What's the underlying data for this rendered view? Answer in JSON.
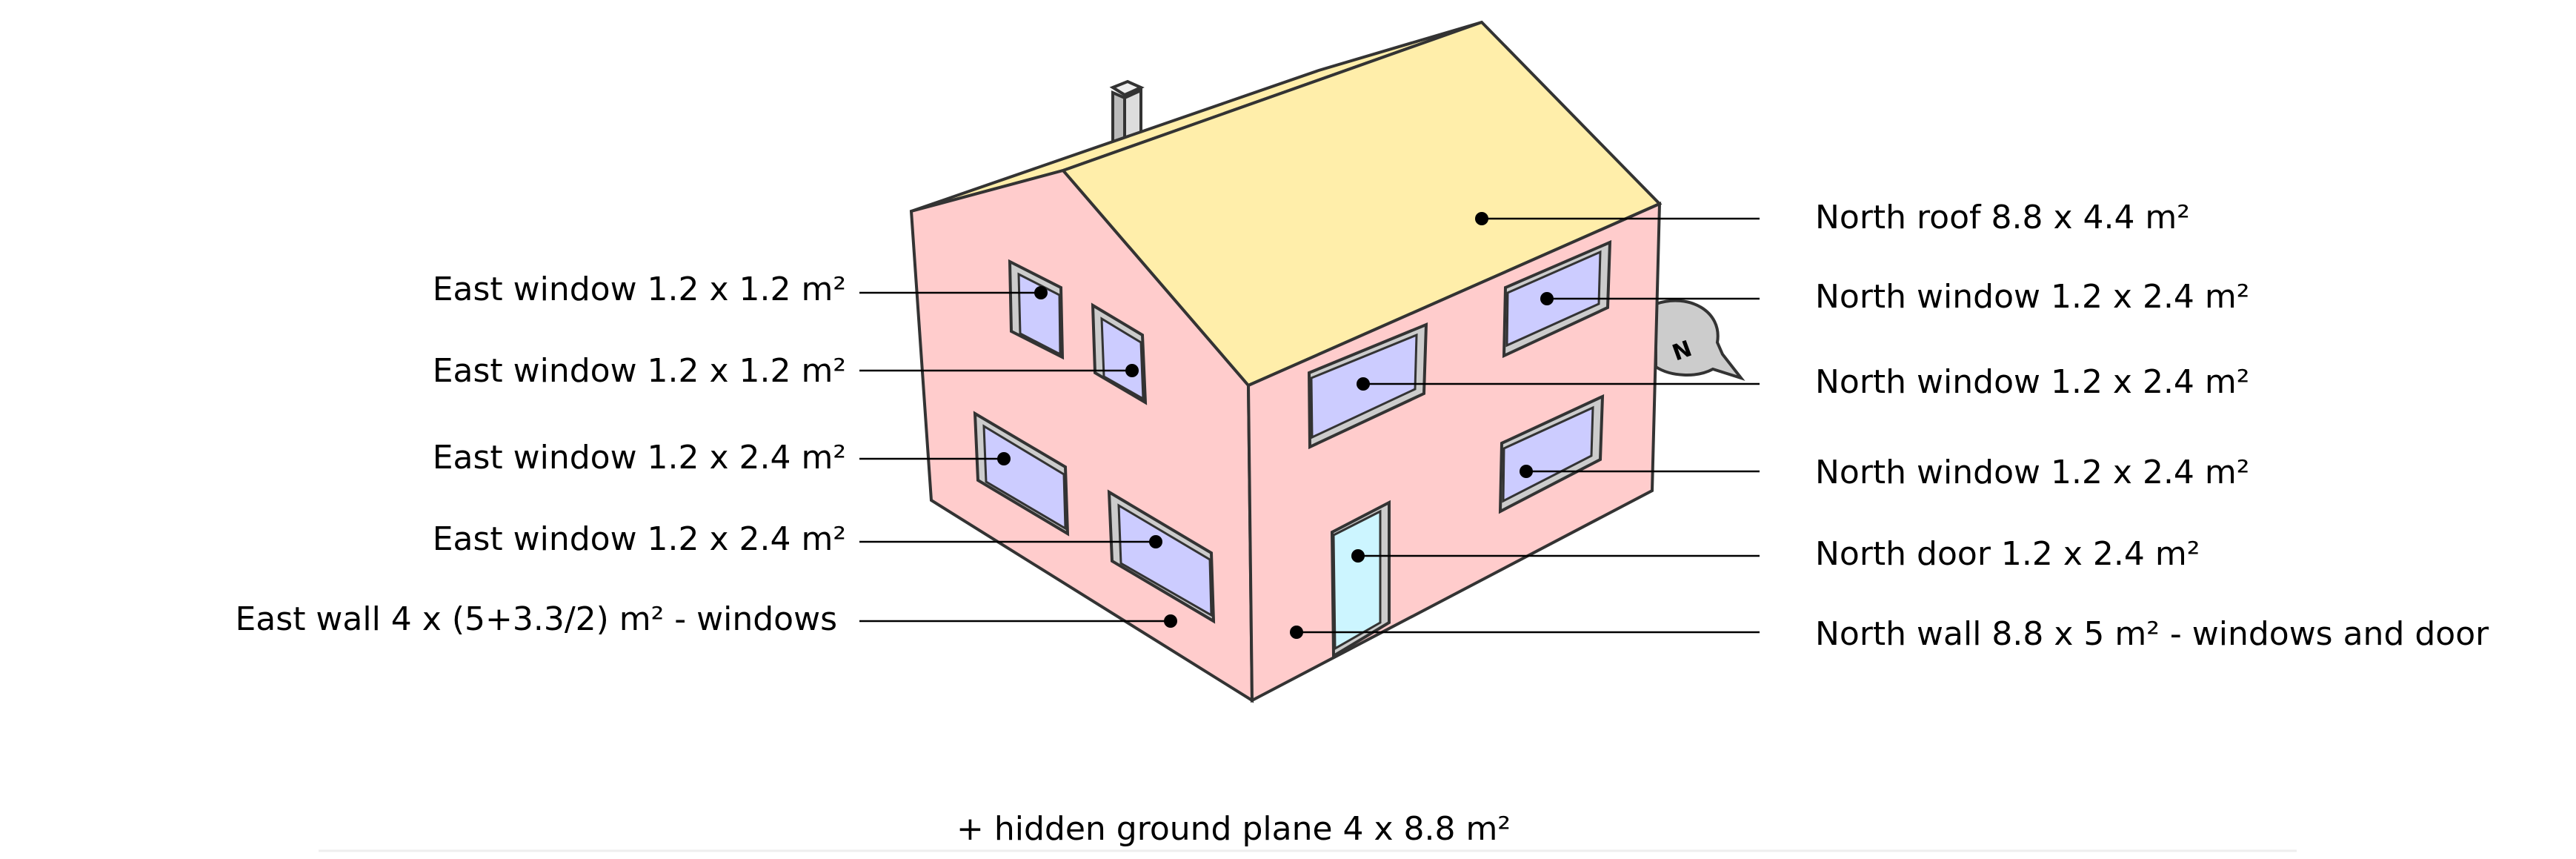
{
  "colors": {
    "wall": "#ffcccc",
    "roof": "#ffeeaa",
    "window": "#ccccff",
    "door": "#ccf5ff",
    "frame": "#cccccc",
    "outline": "#333333"
  },
  "labels": {
    "east_window_1": "East window 1.2 x 1.2 m²",
    "east_window_2": "East window 1.2 x 1.2 m²",
    "east_window_3": "East window 1.2 x 2.4 m²",
    "east_window_4": "East window 1.2 x 2.4 m²",
    "east_wall": "East wall 4 x (5+3.3/2) m² - windows",
    "north_roof": "North roof 8.8 x 4.4 m²",
    "north_window_1": "North window 1.2 x 2.4 m²",
    "north_window_2": "North window 1.2 x 2.4 m²",
    "north_window_3": "North window 1.2 x 2.4 m²",
    "north_door": "North door 1.2 x 2.4 m²",
    "north_wall": "North wall 8.8 x 5 m² - windows and door",
    "ground_note": "+ hidden ground plane 4 x 8.8 m²"
  },
  "compass": {
    "letter": "N"
  }
}
